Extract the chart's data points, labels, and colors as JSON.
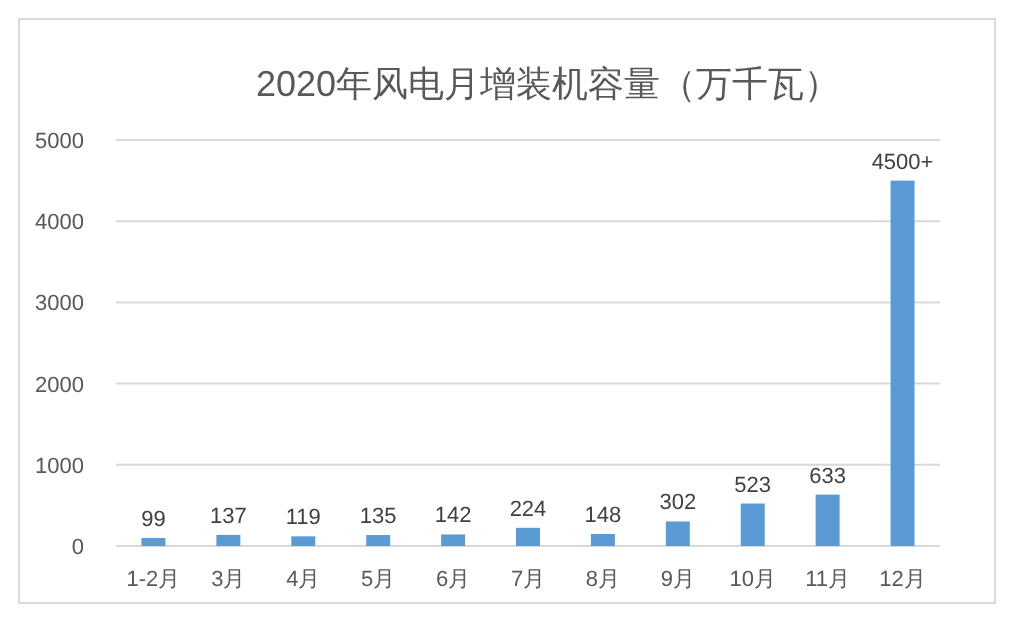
{
  "chart_data": {
    "type": "bar",
    "title": "2020年风电月增装机容量（万千瓦）",
    "categories": [
      "1-2月",
      "3月",
      "4月",
      "5月",
      "6月",
      "7月",
      "8月",
      "9月",
      "10月",
      "11月",
      "12月"
    ],
    "values": [
      99,
      137,
      119,
      135,
      142,
      224,
      148,
      302,
      523,
      633,
      4500
    ],
    "value_labels": [
      "99",
      "137",
      "119",
      "135",
      "142",
      "224",
      "148",
      "302",
      "523",
      "633",
      "4500+"
    ],
    "color": "#5b9bd5",
    "ylim": [
      0,
      5000
    ],
    "yticks": [
      0,
      1000,
      2000,
      3000,
      4000,
      5000
    ],
    "grid": "y"
  }
}
